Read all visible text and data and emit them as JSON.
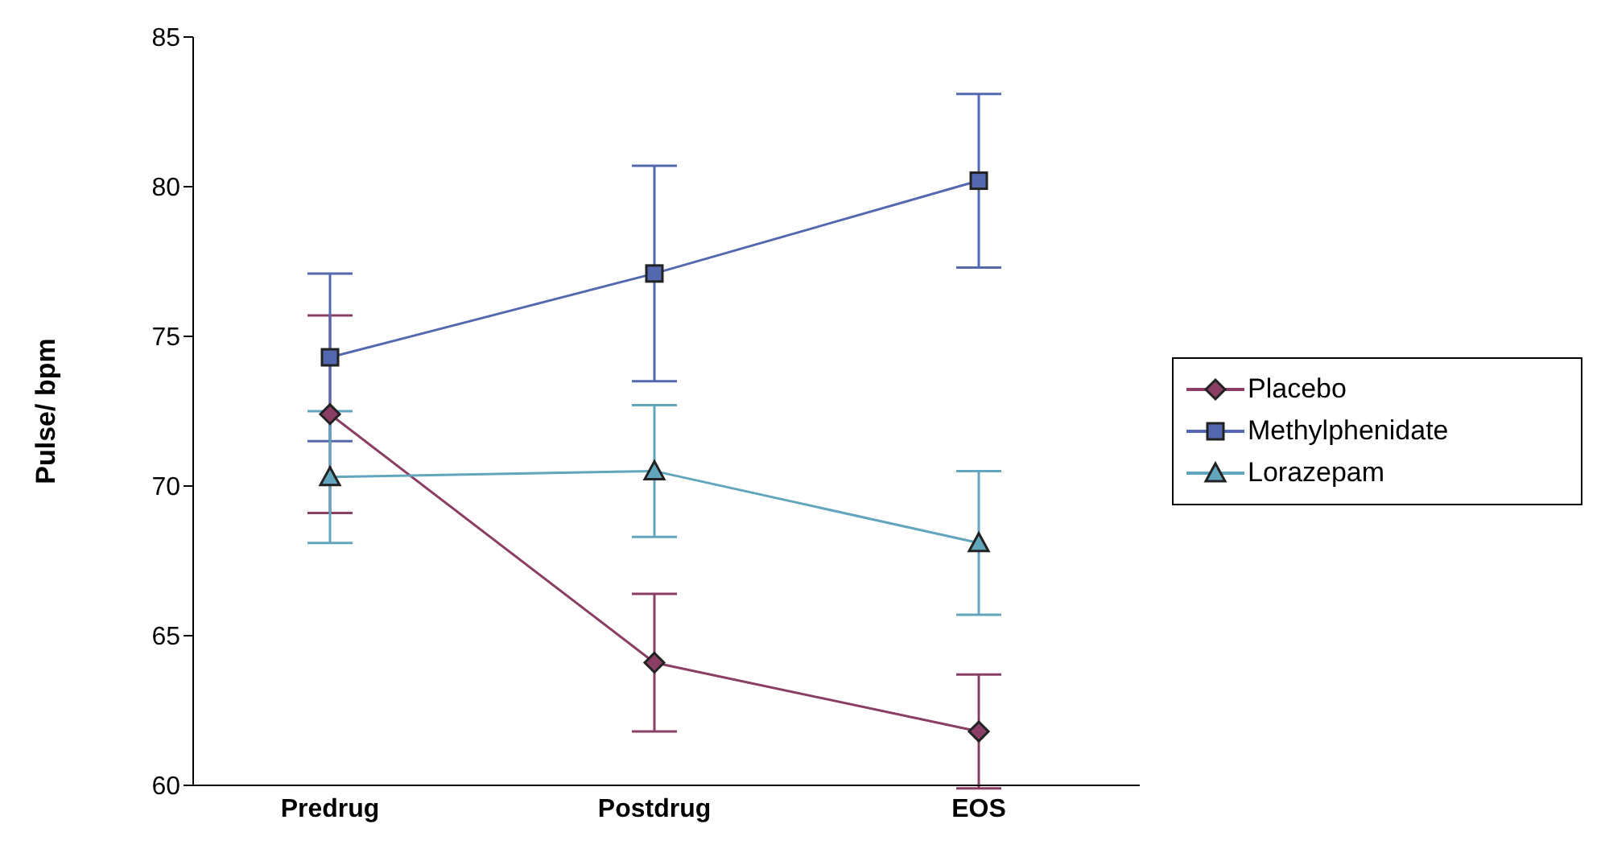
{
  "chart_data": {
    "type": "line",
    "ylabel": "Pulse/ bpm",
    "categories": [
      "Predrug",
      "Postdrug",
      "EOS"
    ],
    "ylim": [
      60,
      85
    ],
    "yticks": [
      60,
      65,
      70,
      75,
      80,
      85
    ],
    "grid": false,
    "legend": "right",
    "series": [
      {
        "name": "Placebo",
        "color": "#8a3e64",
        "marker": "diamond",
        "values": [
          72.4,
          64.1,
          61.8
        ],
        "errors": [
          3.3,
          2.3,
          1.9
        ]
      },
      {
        "name": "Methylphenidate",
        "color": "#5468b0",
        "marker": "square",
        "values": [
          74.3,
          77.1,
          80.2
        ],
        "errors": [
          2.8,
          3.6,
          2.9
        ]
      },
      {
        "name": "Lorazepam",
        "color": "#62a6be",
        "marker": "triangle",
        "values": [
          70.3,
          70.5,
          68.1
        ],
        "errors": [
          2.2,
          2.2,
          2.4
        ]
      }
    ]
  }
}
